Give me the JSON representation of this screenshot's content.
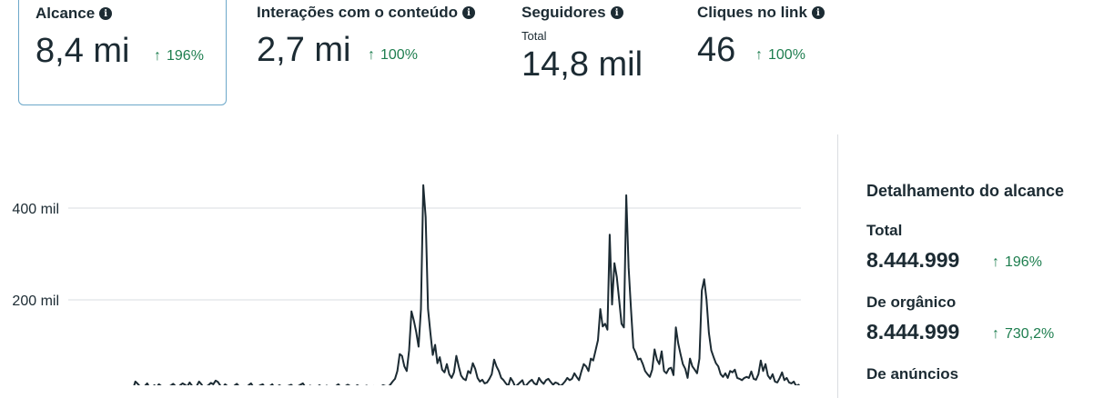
{
  "metrics": [
    {
      "title": "Alcance",
      "value": "8,4 mi",
      "delta": "196%",
      "selected": true
    },
    {
      "title": "Interações com o conteúdo",
      "value": "2,7 mi",
      "delta": "100%"
    },
    {
      "title": "Seguidores",
      "subtitle": "Total",
      "value": "14,8 mil"
    },
    {
      "title": "Cliques no link",
      "value": "46",
      "delta": "100%"
    }
  ],
  "breakdown": {
    "title": "Detalhamento do alcance",
    "items": [
      {
        "label": "Total",
        "value": "8.444.999",
        "delta": "196%"
      },
      {
        "label": "De orgânico",
        "value": "8.444.999",
        "delta": "730,2%"
      },
      {
        "label": "De anúncios"
      }
    ]
  },
  "colors": {
    "accent_border": "#6ca8c9",
    "positive": "#1e7e4f",
    "line": "#1c2b33"
  },
  "chart_data": {
    "type": "line",
    "y_tick_labels": [
      "400 mil",
      "200 mil"
    ],
    "y_ticks": [
      400000,
      200000
    ],
    "ylim": [
      0,
      400000
    ],
    "series": [
      {
        "values": [
          5000,
          6000,
          4000,
          7000,
          5000,
          6000,
          5000,
          8000,
          6000,
          7000,
          10000,
          8000,
          5000,
          22000,
          17000,
          11000,
          8000,
          12000,
          18000,
          9000,
          6000,
          14000,
          10000,
          16000,
          12000,
          9000,
          7000,
          11000,
          13000,
          17000,
          12000,
          9000,
          14000,
          18000,
          15000,
          11000,
          20000,
          13000,
          9000,
          12000,
          22000,
          16000,
          8000,
          11000,
          14000,
          19000,
          16000,
          24000,
          21000,
          13000,
          9000,
          16000,
          12000,
          10000,
          8000,
          13000,
          17000,
          11000,
          10000,
          12000,
          9000,
          14000,
          18000,
          10000,
          8000,
          11000,
          14000,
          16000,
          9000,
          6000,
          12000,
          16000,
          8000,
          10000,
          14000,
          11000,
          7000,
          10000,
          13000,
          15000,
          10000,
          8000,
          12000,
          15000,
          18000,
          10000,
          7000,
          13000,
          11000,
          8000,
          10000,
          14000,
          10000,
          8000,
          13000,
          11000,
          7000,
          9000,
          12000,
          16000,
          10000,
          8000,
          12000,
          15000,
          12000,
          8000,
          10000,
          14000,
          11000,
          8000,
          11000,
          13000,
          10000,
          8000,
          12000,
          10000,
          8000,
          11000,
          14000,
          12000,
          10000,
          15000,
          22000,
          28000,
          45000,
          82000,
          78000,
          55000,
          45000,
          90000,
          175000,
          155000,
          130000,
          98000,
          180000,
          450000,
          380000,
          180000,
          128000,
          80000,
          102000,
          62000,
          75000,
          48000,
          42000,
          60000,
          38000,
          30000,
          42000,
          78000,
          55000,
          35000,
          28000,
          25000,
          45000,
          40000,
          62000,
          50000,
          30000,
          22000,
          26000,
          18000,
          20000,
          28000,
          38000,
          70000,
          55000,
          45000,
          30000,
          25000,
          18000,
          12000,
          30000,
          22000,
          10000,
          15000,
          20000,
          25000,
          10000,
          16000,
          22000,
          26000,
          18000,
          15000,
          30000,
          22000,
          17000,
          25000,
          28000,
          21000,
          15000,
          20000,
          18000,
          12000,
          16000,
          22000,
          30000,
          25000,
          28000,
          40000,
          32000,
          25000,
          44000,
          60000,
          55000,
          45000,
          72000,
          68000,
          90000,
          112000,
          180000,
          142000,
          148000,
          135000,
          342000,
          190000,
          280000,
          250000,
          200000,
          148000,
          140000,
          428000,
          270000,
          180000,
          96000,
          85000,
          70000,
          72000,
          60000,
          45000,
          38000,
          32000,
          48000,
          92000,
          70000,
          60000,
          88000,
          45000,
          40000,
          50000,
          52000,
          36000,
          140000,
          105000,
          82000,
          60000,
          50000,
          30000,
          72000,
          55000,
          48000,
          40000,
          72000,
          220000,
          245000,
          200000,
          128000,
          90000,
          75000,
          62000,
          55000,
          38000,
          32000,
          40000,
          30000,
          45000,
          42000,
          48000,
          30000,
          28000,
          25000,
          30000,
          32000,
          30000,
          44000,
          28000,
          26000,
          38000,
          68000,
          45000,
          60000,
          35000,
          28000,
          38000,
          22000,
          20000,
          30000,
          42000,
          25000,
          30000,
          20000,
          18000,
          22000,
          12000,
          15000,
          8000
        ]
      }
    ]
  }
}
